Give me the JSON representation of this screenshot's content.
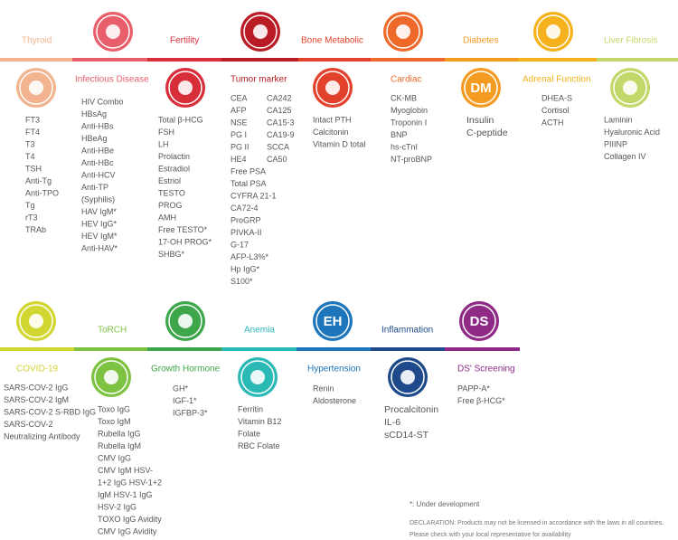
{
  "panels": [
    {
      "title": "Thyroid",
      "color": "#f2b48f",
      "columns": [
        [
          "FT3",
          "FT4",
          "T3",
          "T4",
          "TSH",
          "Anti-Tg",
          "Anti-TPO",
          "Tg",
          "rT3",
          "TRAb"
        ]
      ]
    },
    {
      "title": "Infectious Disease",
      "color": "#e85e6a",
      "columns": [
        [
          "HIV Combo",
          "HBsAg",
          "Anti-HBs",
          "HBeAg",
          "Anti-HBe",
          "Anti-HBc",
          "Anti-HCV",
          "Anti-TP",
          "(Syphilis)",
          "HAV IgM*",
          "HEV IgG*",
          "HEV IgM*",
          "Anti-HAV*"
        ]
      ]
    },
    {
      "title": "Fertility",
      "color": "#d72e3a",
      "columns": [
        [
          "Total  β-HCG",
          "FSH",
          "LH",
          "Prolactin",
          "Estradiol",
          "Estriol",
          "TESTO",
          "PROG",
          "AMH",
          "Free TESTO*",
          "17-OH PROG*",
          "SHBG*"
        ]
      ]
    },
    {
      "title": "Tumor marker",
      "color": "#b91c24",
      "columns": [
        [
          "CEA",
          "AFP",
          "NSE",
          "PG I",
          "PG II",
          "HE4",
          "Free PSA",
          "Total PSA",
          "CYFRA 21-1",
          "CA72-4",
          "ProGRP",
          "PIVKA-II",
          "G-17",
          "AFP-L3%*",
          "Hp IgG*",
          "S100*"
        ],
        [
          "CA242",
          "CA125",
          "CA15-3",
          "CA19-9",
          "SCCA",
          "CA50"
        ]
      ]
    },
    {
      "title": "Bone Metabolic",
      "color": "#e2422b",
      "columns": [
        [
          "Intact PTH",
          "Calcitonin",
          "Vitamin D total"
        ]
      ]
    },
    {
      "title": "Cardiac",
      "color": "#ef6a2a",
      "columns": [
        [
          "CK-MB",
          "Myoglobin",
          "Troponin I",
          "BNP",
          "hs-cTnI",
          "NT-proBNP"
        ]
      ]
    },
    {
      "title": "Diabetes",
      "color": "#f49b22",
      "icon_text": "DM",
      "columns": [
        [
          "Insulin",
          "C-peptide"
        ]
      ]
    },
    {
      "title": "Adrenal Function",
      "color": "#f5b21c",
      "columns": [
        [
          "DHEA-S",
          "Cortisol",
          "ACTH"
        ]
      ]
    },
    {
      "title": "Liver Fibrosis",
      "color": "#c3d86a",
      "columns": [
        [
          "Laminin",
          "Hyaluronic Acid",
          "PIIINP",
          "Collagen IV"
        ]
      ]
    },
    {
      "title": "COVID-19",
      "color": "#d2d631",
      "columns": [
        [
          "SARS-COV-2 IgG",
          "SARS-COV-2 IgM",
          "SARS-COV-2 S-RBD IgG",
          "SARS-COV-2",
          "Neutralizing Antibody"
        ]
      ]
    },
    {
      "title": "ToRCH",
      "color": "#7ec242",
      "columns": [
        [
          "Toxo IgG",
          "Toxo IgM",
          "Rubella IgG",
          "Rubella IgM",
          "CMV IgG",
          "CMV IgM HSV-",
          "1+2 IgG HSV-1+2",
          "IgM HSV-1 IgG",
          "HSV-2 IgG",
          "TOXO IgG Avidity",
          "CMV IgG Avidity"
        ]
      ]
    },
    {
      "title": "Growth Hormone",
      "color": "#3ea64a",
      "columns": [
        [
          "GH*",
          "IGF-1*",
          "IGFBP-3*"
        ]
      ]
    },
    {
      "title": "Anemia",
      "color": "#2bb9b6",
      "columns": [
        [
          "Ferritin",
          "Vitamin B12",
          "Folate",
          "RBC Folate"
        ]
      ]
    },
    {
      "title": "Hypertension",
      "color": "#1d75bb",
      "icon_text": "EH",
      "columns": [
        [
          "Renin",
          "Aldosterone"
        ]
      ]
    },
    {
      "title": "Inflammation",
      "color": "#1e4a8c",
      "columns": [
        [
          "Procalcitonin",
          "IL-6",
          "sCD14-ST"
        ]
      ]
    },
    {
      "title": "DS' Screening",
      "color": "#8f2a86",
      "icon_text": "DS",
      "columns": [
        [
          "PAPP-A*",
          "Free β-HCG*"
        ]
      ]
    }
  ],
  "footnote": "*: Under development",
  "declaration": [
    "DECLARATION: Products may not be licensed in accordance with the laws in all countries.",
    "Please check with your local representative for availability"
  ]
}
